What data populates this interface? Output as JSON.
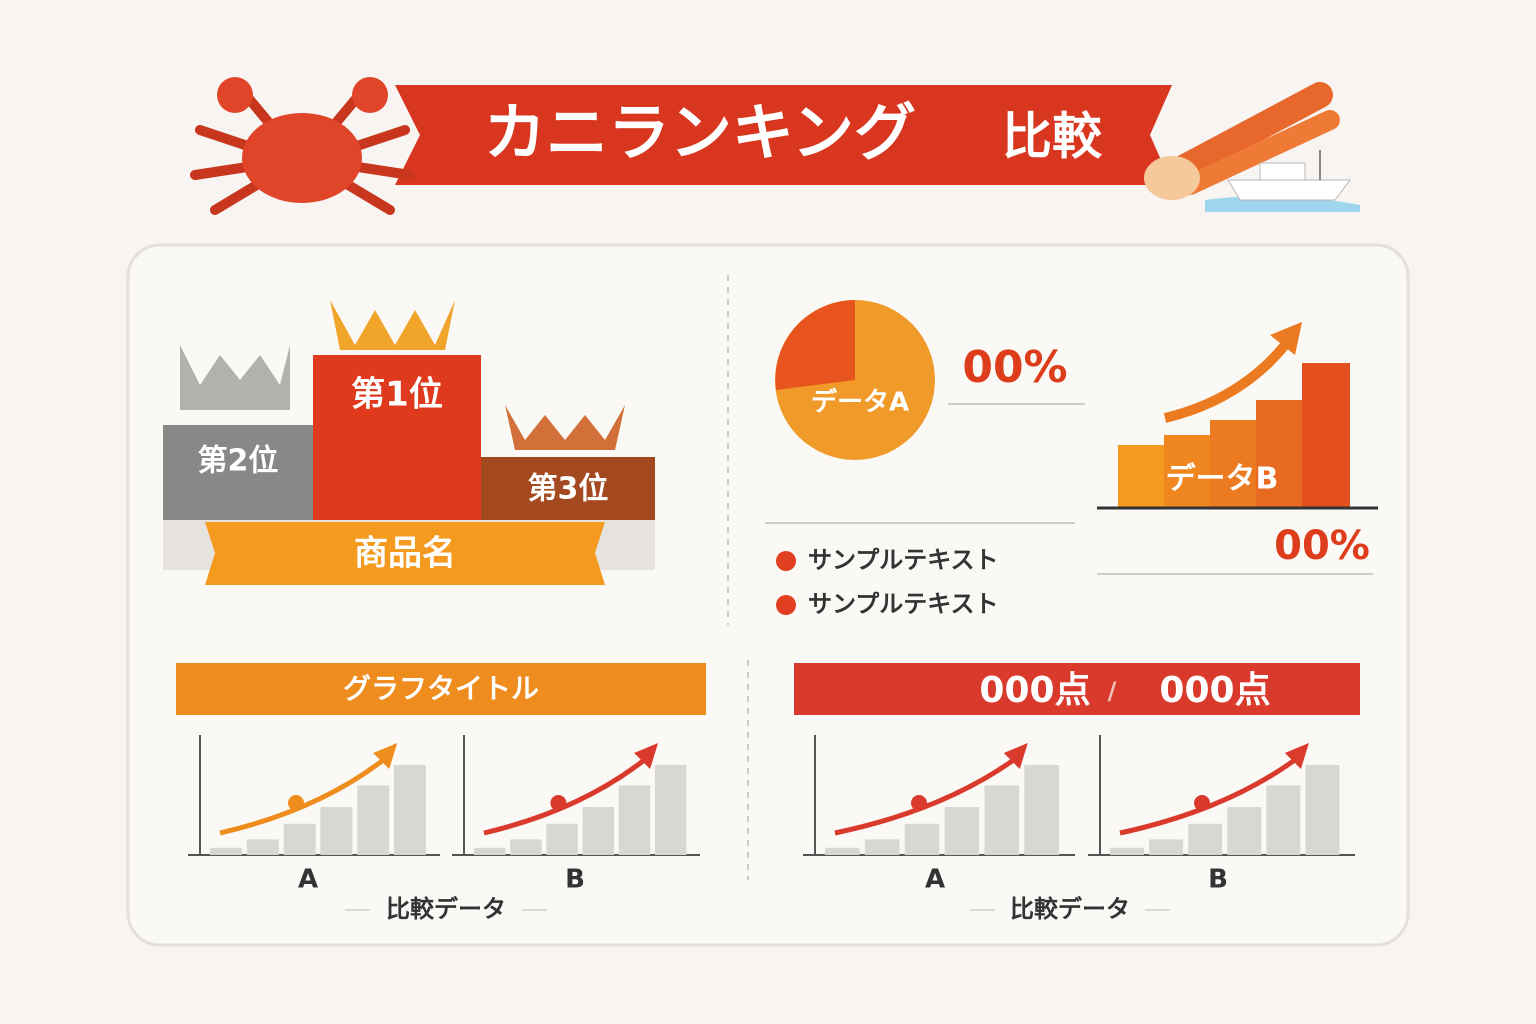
{
  "header": {
    "title": "カニランキング",
    "subtitle": "比較"
  },
  "podium": {
    "ranks": [
      "第1位",
      "第2位",
      "第3位"
    ],
    "product": "商品名"
  },
  "stats": {
    "pie_label": "データA",
    "pie_value": "00%",
    "bar_label": "データB",
    "bar_value": "00%",
    "legend": [
      "サンプルテキスト",
      "サンプルテキスト"
    ]
  },
  "panels": [
    {
      "title": "グラフタイトル",
      "charts": [
        "A",
        "B"
      ],
      "caption": "比較データ"
    },
    {
      "score": [
        "000点",
        "000点"
      ],
      "separator": "/",
      "charts": [
        "A",
        "B"
      ],
      "caption": "比較データ"
    }
  ]
}
